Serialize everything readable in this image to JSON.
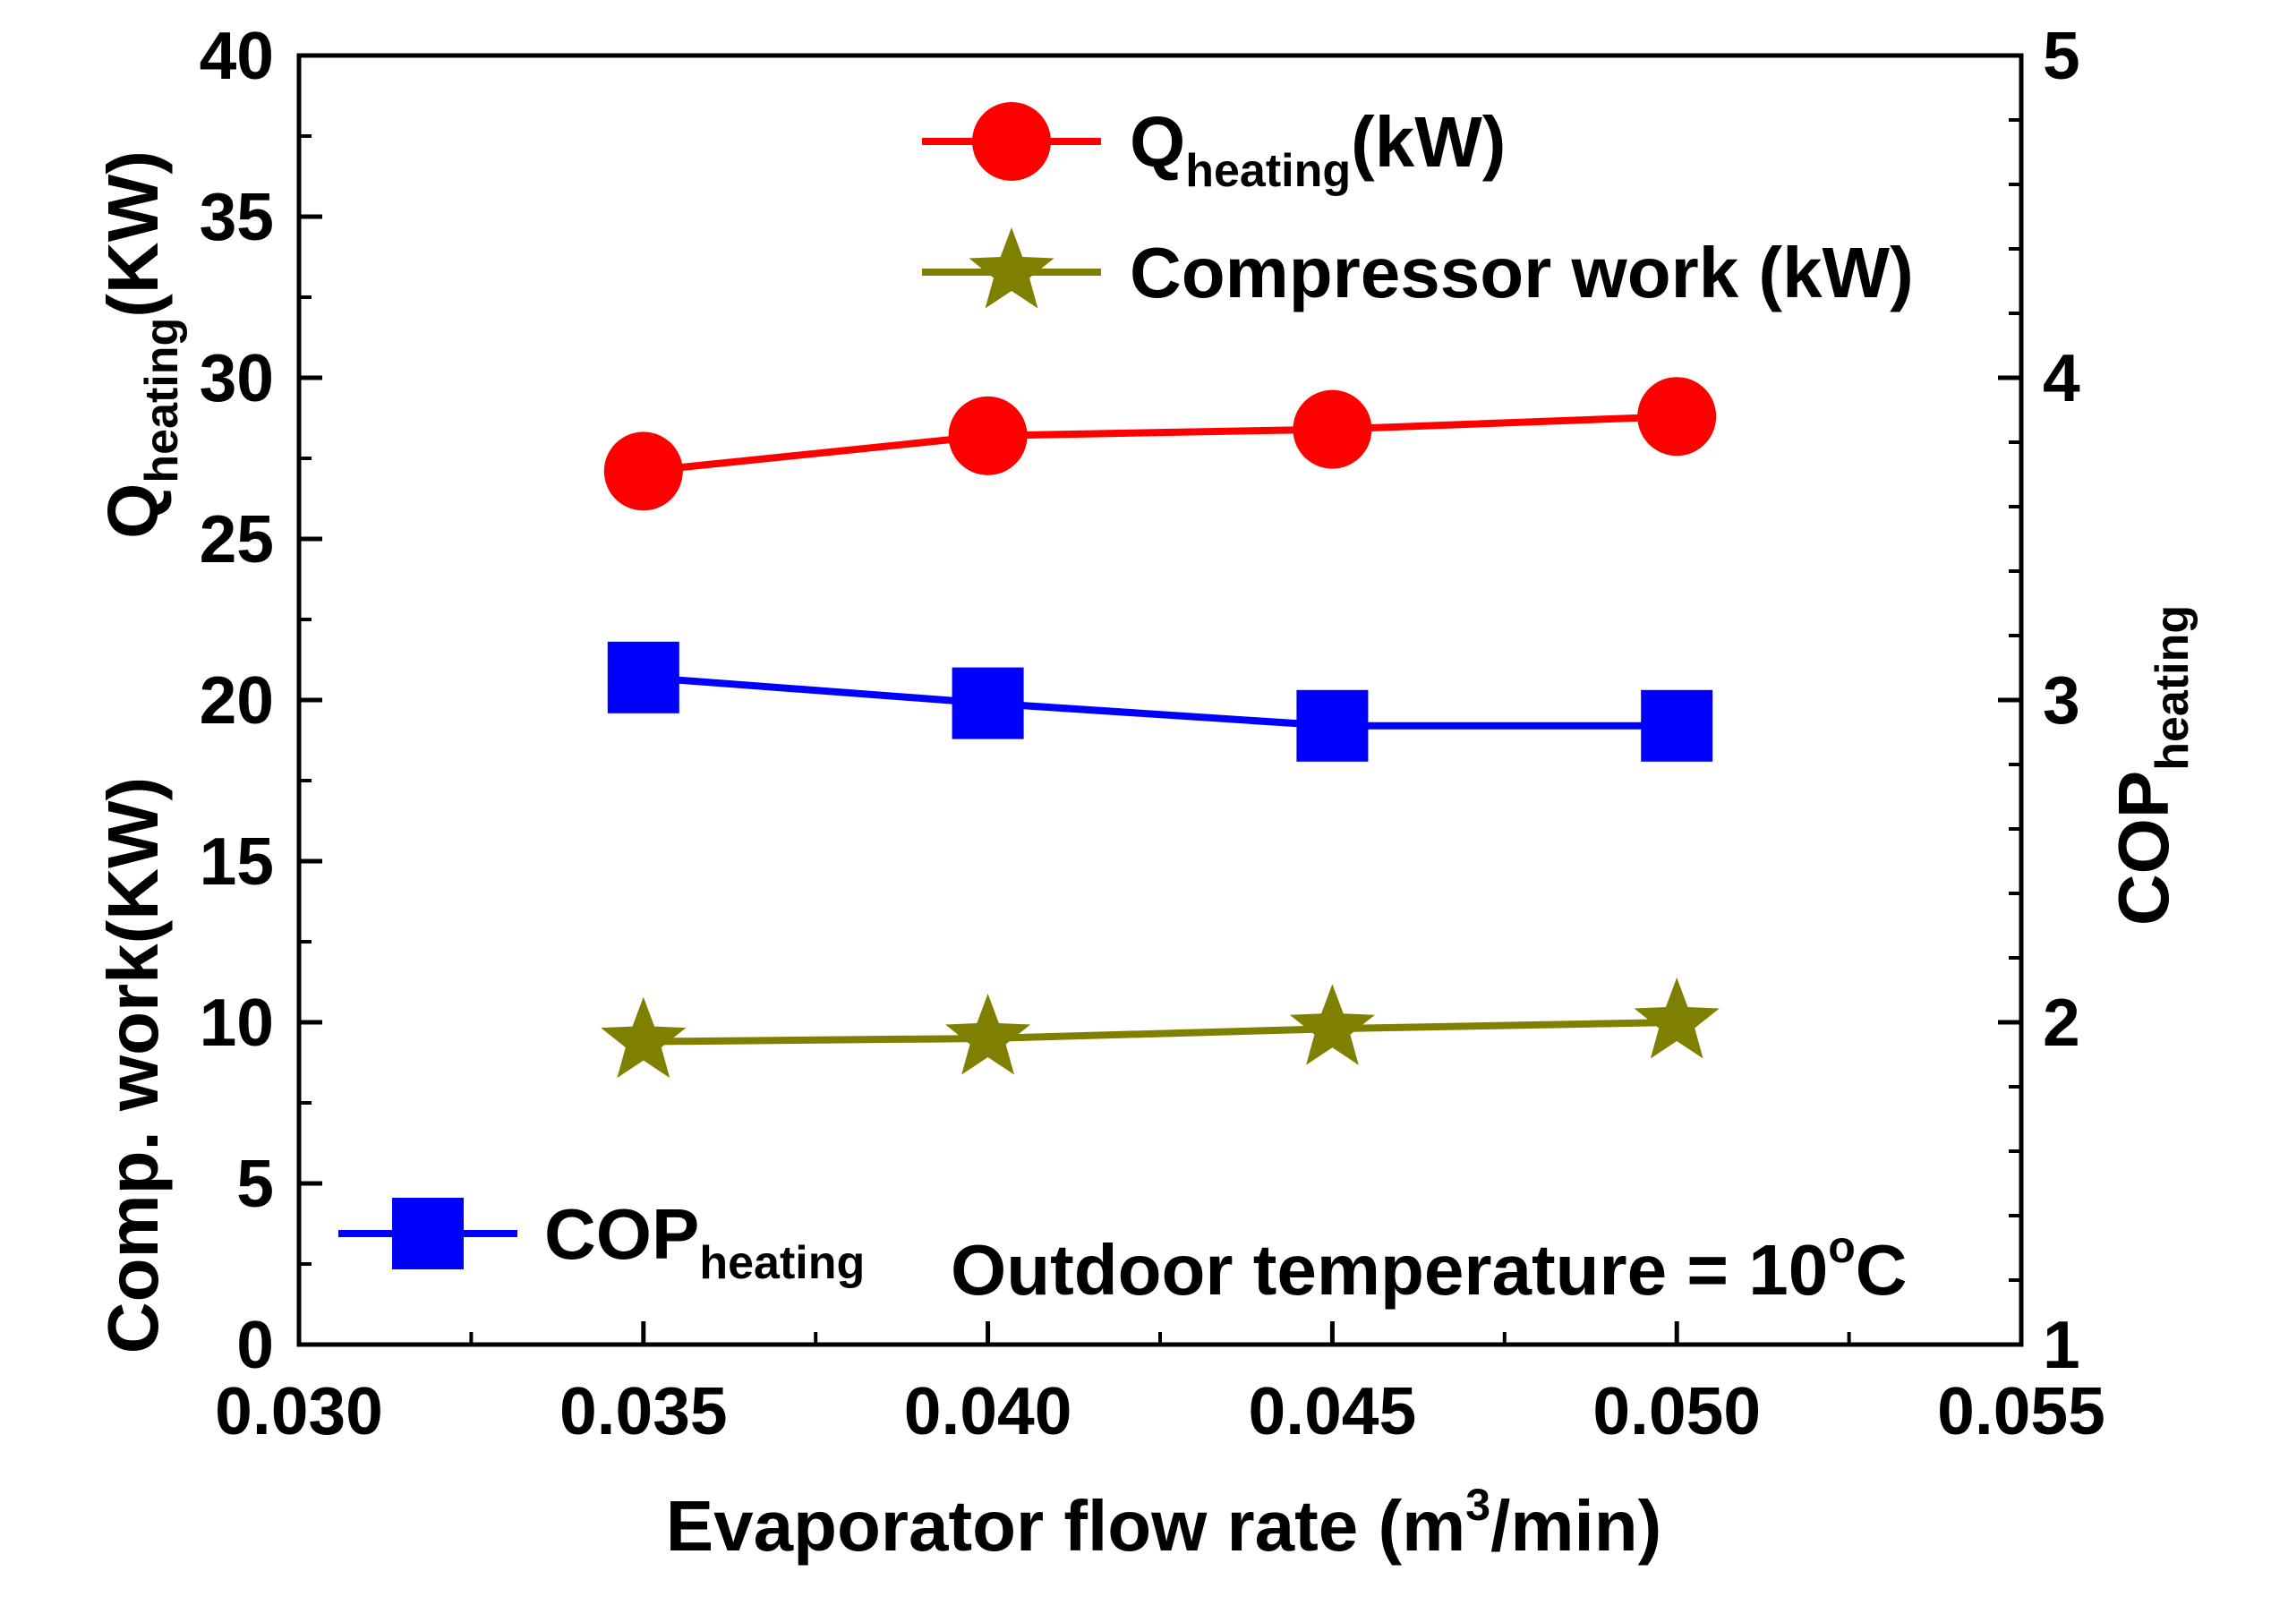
{
  "chart_data": {
    "type": "line",
    "x": [
      0.035,
      0.04,
      0.045,
      0.05
    ],
    "xlabel_prefix": "Evaporator flow rate (m",
    "xlabel_sup": "3",
    "xlabel_suffix": "/min)",
    "xlim": [
      0.03,
      0.055
    ],
    "xticks": [
      "0.030",
      "0.035",
      "0.040",
      "0.045",
      "0.050",
      "0.055"
    ],
    "ylim_left": [
      0,
      40
    ],
    "yticks_left": [
      "0",
      "5",
      "10",
      "15",
      "20",
      "25",
      "30",
      "35",
      "40"
    ],
    "ylabel_left_top_main": "Q",
    "ylabel_left_top_sub": "heating",
    "ylabel_left_top_suffix": "(KW)",
    "ylabel_left_bottom": "Comp. work(KW)",
    "ylim_right": [
      1,
      5
    ],
    "yticks_right": [
      "1",
      "2",
      "3",
      "4",
      "5"
    ],
    "ylabel_right_main": "COP",
    "ylabel_right_sub": "heating",
    "series": [
      {
        "name": "Q_heating(kW)",
        "legend_main": "Q",
        "legend_sub": "heating",
        "legend_suffix": "(kW)",
        "axis": "left",
        "marker": "circle",
        "color": "#ff0000",
        "values": [
          27.1,
          28.2,
          28.4,
          28.8
        ]
      },
      {
        "name": "Compressor work (kW)",
        "legend_main": "Compressor work (kW)",
        "axis": "left",
        "marker": "star",
        "color": "#808000",
        "values": [
          9.4,
          9.5,
          9.8,
          10.0
        ]
      },
      {
        "name": "COP_heating",
        "legend_main": "COP",
        "legend_sub": "heating",
        "axis": "right",
        "marker": "square",
        "color": "#0000ff",
        "values": [
          3.07,
          2.99,
          2.92,
          2.92
        ]
      }
    ],
    "annotation_prefix": "Outdoor temperature = 10",
    "annotation_degree": "o",
    "annotation_suffix": "C",
    "legend_position": "top-center and bottom-left"
  }
}
